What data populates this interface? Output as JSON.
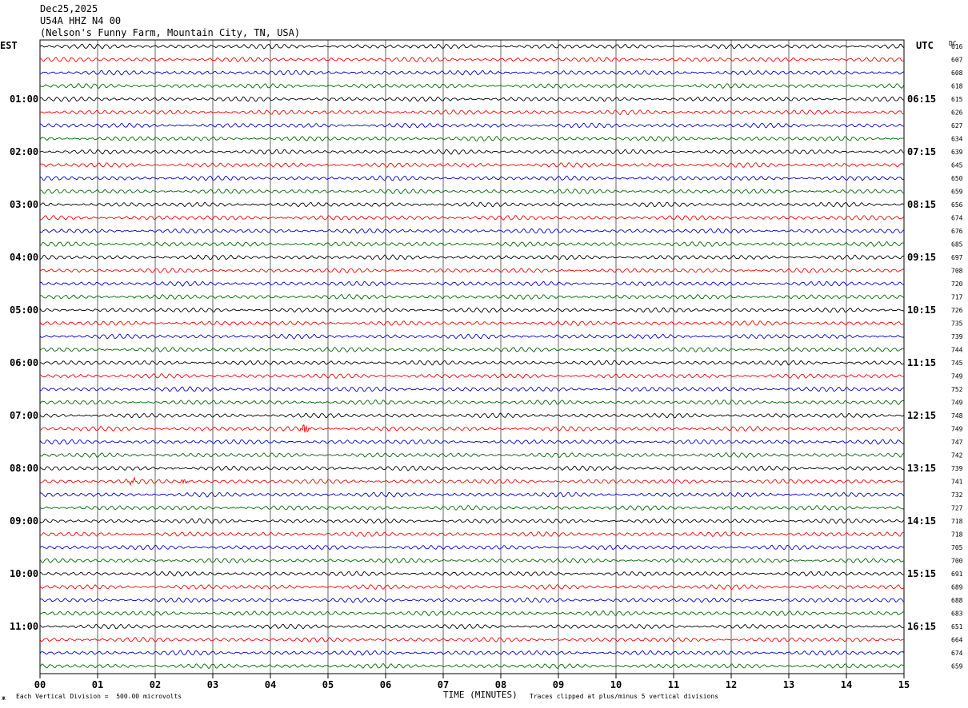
{
  "header": {
    "date": "Dec25,2025",
    "station": "U54A HHZ N4 00",
    "location": "(Nelson's Funny Farm, Mountain City, TN, USA)"
  },
  "left_axis_title": "EST",
  "right_axis_title": "UTC",
  "dc_title": "DC",
  "footer": {
    "corner_mark": "ж",
    "scale_note": "Each Vertical Division =  500.00 microvolts",
    "xlabel": "TIME (MINUTES)",
    "clip_note": "Traces clipped at plus/minus 5 vertical divisions"
  },
  "chart_data": {
    "type": "line",
    "title": "U54A HHZ N4 00",
    "xlabel": "TIME (MINUTES)",
    "xlim": [
      0,
      15
    ],
    "x_ticks": [
      "00",
      "01",
      "02",
      "03",
      "04",
      "05",
      "06",
      "07",
      "08",
      "09",
      "10",
      "11",
      "12",
      "13",
      "14",
      "15"
    ],
    "grid": true,
    "trace_colors": [
      "#000000",
      "#ff0000",
      "#0000cc",
      "#006600"
    ],
    "est_labels": [
      "01:00",
      "02:00",
      "03:00",
      "04:00",
      "05:00",
      "06:00",
      "07:00",
      "08:00",
      "09:00",
      "10:00",
      "11:00"
    ],
    "utc_labels": [
      "06:15",
      "07:15",
      "08:15",
      "09:15",
      "10:15",
      "11:15",
      "12:15",
      "13:15",
      "14:15",
      "15:15",
      "16:15"
    ],
    "dc_offsets": [
      616,
      607,
      608,
      618,
      615,
      626,
      627,
      634,
      639,
      645,
      650,
      659,
      656,
      674,
      676,
      685,
      697,
      708,
      720,
      717,
      726,
      735,
      739,
      744,
      745,
      749,
      752,
      749,
      748,
      749,
      747,
      742,
      739,
      741,
      732,
      727,
      718,
      718,
      705,
      700,
      691,
      689,
      688,
      683,
      651,
      664,
      674,
      659
    ],
    "events": [
      {
        "trace": 29,
        "minute": 4.6,
        "amplitude": "large"
      },
      {
        "trace": 33,
        "minute": 1.6,
        "amplitude": "medium"
      },
      {
        "trace": 33,
        "minute": 2.5,
        "amplitude": "medium"
      }
    ]
  }
}
